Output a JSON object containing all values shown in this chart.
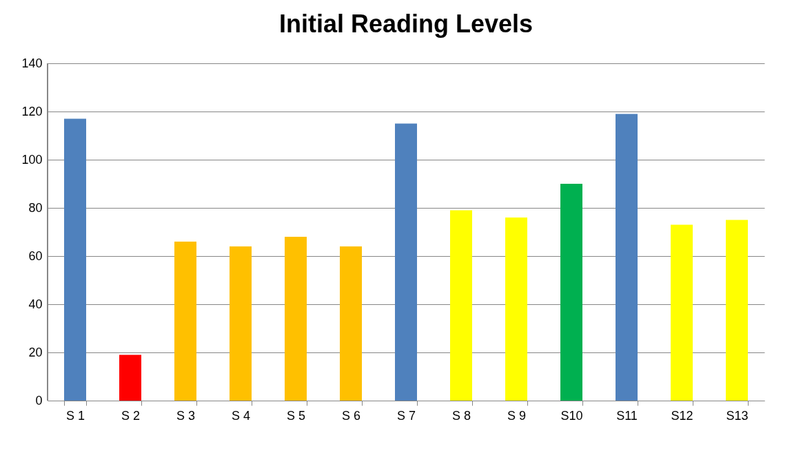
{
  "chart_data": {
    "type": "bar",
    "title": "Initial Reading Levels",
    "categories": [
      "S 1",
      "S 2",
      "S 3",
      "S 4",
      "S 5",
      "S 6",
      "S 7",
      "S 8",
      "S 9",
      "S10",
      "S11",
      "S12",
      "S13"
    ],
    "values": [
      117,
      19,
      66,
      64,
      68,
      64,
      115,
      79,
      76,
      90,
      119,
      73,
      75
    ],
    "colors": [
      "#4f81bd",
      "#ff0000",
      "#ffc000",
      "#ffc000",
      "#ffc000",
      "#ffc000",
      "#4f81bd",
      "#ffff00",
      "#ffff00",
      "#00b050",
      "#4f81bd",
      "#ffff00",
      "#ffff00"
    ],
    "ylim": [
      0,
      140
    ],
    "yticks": [
      0,
      20,
      40,
      60,
      80,
      100,
      120,
      140
    ],
    "grid": "y"
  }
}
